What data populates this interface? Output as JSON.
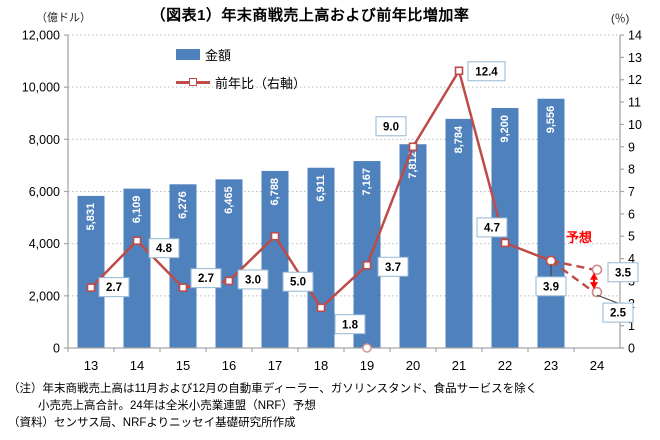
{
  "chart_data": {
    "type": "bar",
    "subtype": "bar-line-combo",
    "title": "（図表1）年末商戦売上高および前年比増加率",
    "left_axis": {
      "unit": "（億ドル）",
      "min": 0,
      "max": 12000,
      "step": 2000,
      "tick_labels": [
        "0",
        "2,000",
        "4,000",
        "6,000",
        "8,000",
        "10,000",
        "12,000"
      ]
    },
    "right_axis": {
      "unit": "(％)",
      "min": 0,
      "max": 14,
      "step": 1,
      "tick_labels": [
        "0",
        "1",
        "2",
        "3",
        "4",
        "5",
        "6",
        "7",
        "8",
        "9",
        "10",
        "11",
        "12",
        "13",
        "14"
      ]
    },
    "categories": [
      "13",
      "14",
      "15",
      "16",
      "17",
      "18",
      "19",
      "20",
      "21",
      "22",
      "23",
      "24"
    ],
    "bars": {
      "name": "金額",
      "color": "#4F81BD",
      "values": [
        5831,
        6109,
        6276,
        6465,
        6788,
        6911,
        7167,
        7812,
        8784,
        9200,
        9556,
        null
      ],
      "labels": [
        "5,831",
        "6,109",
        "6,276",
        "6,465",
        "6,788",
        "6,911",
        "7,167",
        "7,812",
        "8,784",
        "9,200",
        "9,556"
      ]
    },
    "line": {
      "name": "前年比（右軸）",
      "color": "#BE4B48",
      "values": [
        2.7,
        4.8,
        2.7,
        3.0,
        5.0,
        1.8,
        3.7,
        9.0,
        12.4,
        4.7,
        3.9
      ],
      "labels": [
        "2.7",
        "4.8",
        "2.7",
        "3.0",
        "5.0",
        "1.8",
        "3.7",
        "9.0",
        "12.4",
        "4.7",
        "3.9"
      ]
    },
    "forecast": {
      "label": "予想",
      "color": "#FF0000",
      "category": "24",
      "values": [
        3.5,
        2.5
      ],
      "labels": [
        "3.5",
        "2.5"
      ]
    },
    "grid": "dotted horizontal",
    "legend_position": "top-left-inside",
    "notes": [
      "（注）年末商戦売上高は11月および12月の自動車ディーラー、ガソリンスタンド、食品サービスを除く",
      "小売売上高合計。24年は全米小売業連盟（NRF）予想",
      "（資料）センサス局、NRFよりニッセイ基礎研究所作成"
    ]
  }
}
